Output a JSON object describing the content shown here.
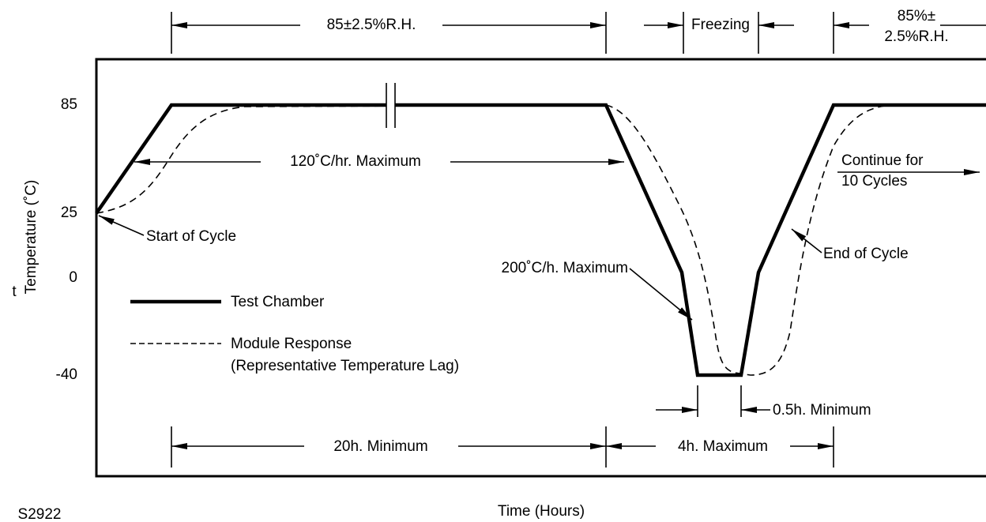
{
  "top": {
    "humidity_label": "85±2.5%R.H.",
    "freezing_label": "Freezing",
    "humidity_label_2": [
      "85%±",
      "2.5%R.H."
    ]
  },
  "axis": {
    "ticks": [
      "85",
      "25",
      "0",
      "-40"
    ],
    "y_symbol": "t",
    "y_label": "Temperature (˚C)",
    "x_label": "Time (Hours)"
  },
  "annotations": {
    "ramp_up": "120˚C/hr. Maximum",
    "continue": [
      "Continue for",
      "10 Cycles"
    ],
    "start": "Start of Cycle",
    "ramp_down": "200˚C/h. Maximum",
    "end": "End of Cycle",
    "dwell": "0.5h. Minimum",
    "humid_duration": "20h. Minimum",
    "freeze_duration": "4h. Maximum"
  },
  "legend": {
    "solid": "Test Chamber",
    "dashed": [
      "Module Response",
      "(Representative Temperature Lag)"
    ]
  },
  "figure_id": "S2922"
}
